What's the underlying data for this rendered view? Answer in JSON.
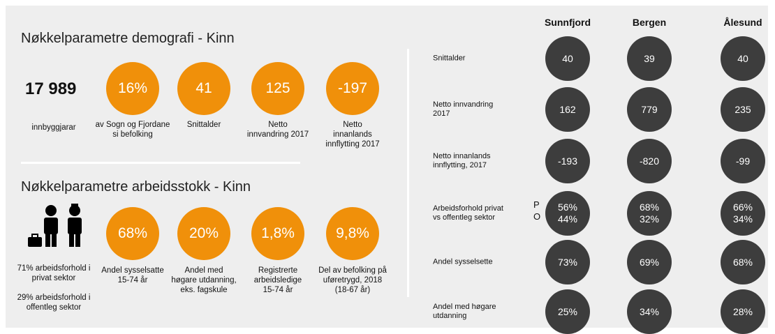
{
  "demografi": {
    "title": "Nøkkelparametre demografi - Kinn",
    "population": {
      "value": "17 989",
      "label": "innbyggjarar"
    },
    "items": [
      {
        "value": "16%",
        "label": "av Sogn og Fjordane\nsi befolking"
      },
      {
        "value": "41",
        "label": "Snittalder"
      },
      {
        "value": "125",
        "label": "Netto\ninnvandring 2017"
      },
      {
        "value": "-197",
        "label": "Netto\ninnanlands\ninnflytting 2017"
      }
    ]
  },
  "arbeidsstokk": {
    "title": "Nøkkelparametre arbeidsstokk - Kinn",
    "notes": [
      "71% arbeidsforhold i\nprivat sektor",
      "29% arbeidsforhold i\noffentleg sektor"
    ],
    "items": [
      {
        "value": "68%",
        "label": "Andel sysselsatte\n15-74 år"
      },
      {
        "value": "20%",
        "label": "Andel med\nhøgare utdanning,\neks. fagskule"
      },
      {
        "value": "1,8%",
        "label": "Registrerte\narbeidsledige\n15-74 år"
      },
      {
        "value": "9,8%",
        "label": "Del av befolking på\nuføretrygd, 2018\n(18-67 år)"
      }
    ]
  },
  "comparison": {
    "columns": [
      "Sunnfjord",
      "Bergen",
      "Ålesund"
    ],
    "legend": [
      "P",
      "O"
    ],
    "rows": [
      {
        "label": "Snittalder",
        "values": [
          [
            "40"
          ],
          [
            "39"
          ],
          [
            "40"
          ]
        ]
      },
      {
        "label": "Netto innvandring\n2017",
        "values": [
          [
            "162"
          ],
          [
            "779"
          ],
          [
            "235"
          ]
        ]
      },
      {
        "label": "Netto innanlands\ninnflytting, 2017",
        "values": [
          [
            "-193"
          ],
          [
            "-820"
          ],
          [
            "-99"
          ]
        ]
      },
      {
        "label": "Arbeidsforhold privat\nvs offentleg sektor",
        "values": [
          [
            "56%",
            "44%"
          ],
          [
            "68%",
            "32%"
          ],
          [
            "66%",
            "34%"
          ]
        ]
      },
      {
        "label": "Andel sysselsette",
        "values": [
          [
            "73%"
          ],
          [
            "69%"
          ],
          [
            "68%"
          ]
        ]
      },
      {
        "label": "Andel med høgare\nutdanning",
        "values": [
          [
            "25%"
          ],
          [
            "34%"
          ],
          [
            "28%"
          ]
        ]
      }
    ]
  }
}
